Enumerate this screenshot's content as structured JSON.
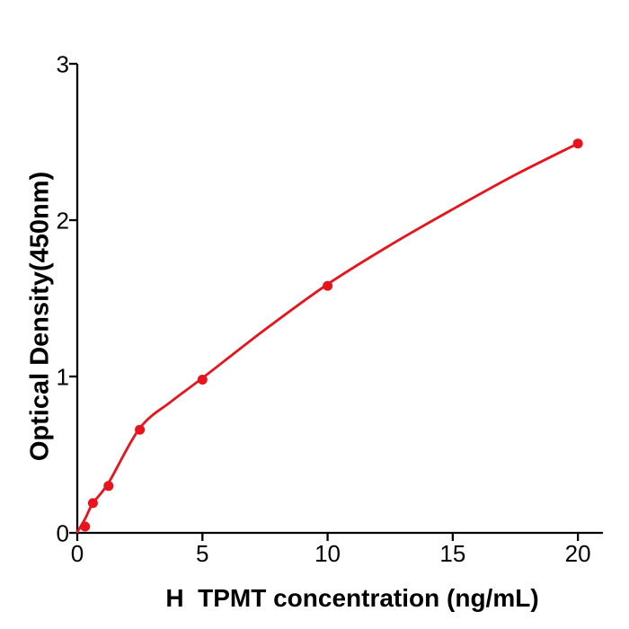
{
  "figure": {
    "background": "#ffffff"
  },
  "chart_data": {
    "type": "scatter",
    "title": "",
    "xlabel": "H  TPMT concentration (ng/mL)",
    "ylabel": "Optical Density(450nm)",
    "x_ticks": [
      0,
      5,
      10,
      15,
      20
    ],
    "y_ticks": [
      0,
      1,
      2,
      3
    ],
    "xlim": [
      0,
      21
    ],
    "ylim": [
      0,
      3
    ],
    "grid": false,
    "legend_position": "none",
    "axis_color": "#000000",
    "tick_label_color": "#000000",
    "point_color": "#e8131d",
    "line_color": "#e8131d",
    "series": [
      {
        "name": "standard-points",
        "type": "scatter",
        "x": [
          0.313,
          0.625,
          1.25,
          2.5,
          5,
          10,
          20
        ],
        "y": [
          0.04,
          0.19,
          0.3,
          0.66,
          0.98,
          1.58,
          2.49
        ]
      },
      {
        "name": "fit-curve",
        "type": "line",
        "x": [
          0,
          0.313,
          0.625,
          1.25,
          2.5,
          3.75,
          5,
          7.5,
          10,
          12.5,
          15,
          17.5,
          20
        ],
        "y": [
          0.005,
          0.09,
          0.19,
          0.32,
          0.67,
          0.84,
          0.99,
          1.3,
          1.59,
          1.84,
          2.07,
          2.29,
          2.49
        ]
      }
    ]
  }
}
